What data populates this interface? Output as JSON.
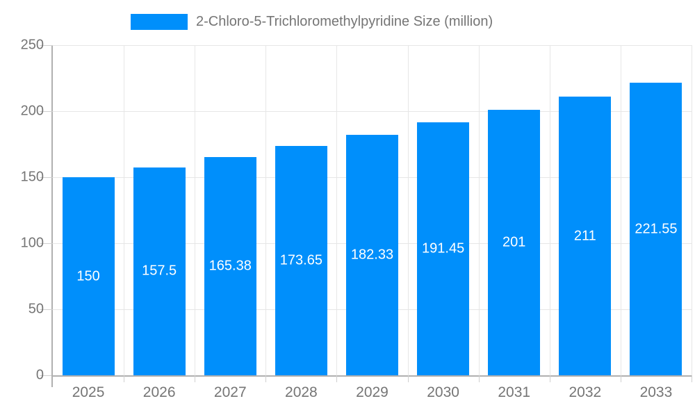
{
  "chart_data": {
    "type": "bar",
    "title": "2-Chloro-5-Trichloromethylpyridine Size (million)",
    "categories": [
      "2025",
      "2026",
      "2027",
      "2028",
      "2029",
      "2030",
      "2031",
      "2032",
      "2033"
    ],
    "values": [
      150,
      157.5,
      165.38,
      173.65,
      182.33,
      191.45,
      201,
      211,
      221.55
    ],
    "value_labels": [
      "150",
      "157.5",
      "165.38",
      "173.65",
      "182.33",
      "191.45",
      "201",
      "211",
      "221.55"
    ],
    "xlabel": "",
    "ylabel": "",
    "ylim": [
      0,
      250
    ],
    "y_ticks": [
      0,
      50,
      100,
      150,
      200,
      250
    ],
    "grid": "on",
    "legend_position": "top",
    "bar_color": "#008FFB",
    "value_label_color": "#ffffff",
    "axis_label_color": "#757575"
  }
}
